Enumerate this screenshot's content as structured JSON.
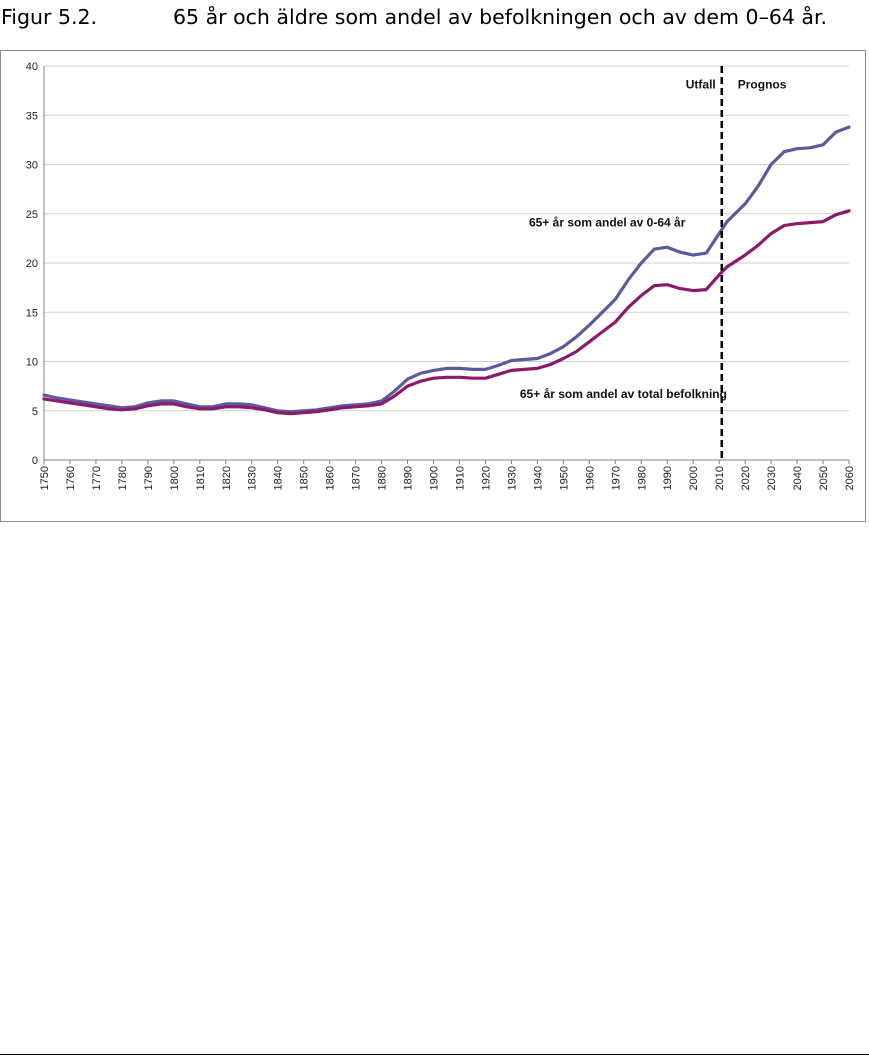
{
  "figure": {
    "number": "Figur 5.2.",
    "title": "65 år och äldre som andel av befolkningen och av dem 0–64 år."
  },
  "chart_data": {
    "type": "line",
    "ylim": [
      0,
      40
    ],
    "yticks": [
      0,
      5,
      10,
      15,
      20,
      25,
      30,
      35,
      40
    ],
    "xlim": [
      1750,
      2060
    ],
    "xticks": [
      "1750",
      "1760",
      "1770",
      "1780",
      "1790",
      "1800",
      "1810",
      "1820",
      "1830",
      "1840",
      "1850",
      "1860",
      "1870",
      "1880",
      "1890",
      "1900",
      "1910",
      "1920",
      "1930",
      "1940",
      "1950",
      "1960",
      "1970",
      "1980",
      "1990",
      "2000",
      "2010",
      "2020",
      "2030",
      "2040",
      "2050",
      "2060"
    ],
    "grid": "horizontal",
    "divider_year": 2011,
    "region_labels": {
      "left": "Utfall",
      "right": "Prognos"
    },
    "colors": {
      "series_0_64": "#5a5a9c",
      "series_total": "#8c1a6a",
      "divider": "#000000",
      "grid": "#d0d0d0"
    },
    "series": [
      {
        "name": "65+ år som andel av 0-64 år",
        "points": [
          [
            1750,
            6.6
          ],
          [
            1755,
            6.3
          ],
          [
            1760,
            6.1
          ],
          [
            1765,
            5.9
          ],
          [
            1770,
            5.7
          ],
          [
            1775,
            5.5
          ],
          [
            1780,
            5.3
          ],
          [
            1785,
            5.4
          ],
          [
            1790,
            5.8
          ],
          [
            1795,
            6.0
          ],
          [
            1800,
            6.0
          ],
          [
            1805,
            5.7
          ],
          [
            1810,
            5.4
          ],
          [
            1815,
            5.4
          ],
          [
            1820,
            5.7
          ],
          [
            1825,
            5.7
          ],
          [
            1830,
            5.6
          ],
          [
            1835,
            5.3
          ],
          [
            1840,
            5.0
          ],
          [
            1845,
            4.9
          ],
          [
            1850,
            5.0
          ],
          [
            1855,
            5.1
          ],
          [
            1860,
            5.3
          ],
          [
            1865,
            5.5
          ],
          [
            1870,
            5.6
          ],
          [
            1875,
            5.7
          ],
          [
            1880,
            6.0
          ],
          [
            1885,
            7.0
          ],
          [
            1890,
            8.2
          ],
          [
            1895,
            8.8
          ],
          [
            1900,
            9.1
          ],
          [
            1905,
            9.3
          ],
          [
            1910,
            9.3
          ],
          [
            1915,
            9.2
          ],
          [
            1920,
            9.2
          ],
          [
            1925,
            9.6
          ],
          [
            1930,
            10.1
          ],
          [
            1935,
            10.2
          ],
          [
            1940,
            10.3
          ],
          [
            1945,
            10.8
          ],
          [
            1950,
            11.5
          ],
          [
            1955,
            12.5
          ],
          [
            1960,
            13.7
          ],
          [
            1965,
            15.0
          ],
          [
            1970,
            16.3
          ],
          [
            1975,
            18.3
          ],
          [
            1980,
            20.0
          ],
          [
            1985,
            21.4
          ],
          [
            1990,
            21.6
          ],
          [
            1995,
            21.1
          ],
          [
            2000,
            20.8
          ],
          [
            2005,
            21.0
          ],
          [
            2010,
            23.0
          ],
          [
            2013,
            24.2
          ],
          [
            2020,
            26.0
          ],
          [
            2025,
            27.8
          ],
          [
            2030,
            30.0
          ],
          [
            2035,
            31.3
          ],
          [
            2040,
            31.6
          ],
          [
            2045,
            31.7
          ],
          [
            2050,
            32.0
          ],
          [
            2055,
            33.3
          ],
          [
            2060,
            33.8
          ]
        ]
      },
      {
        "name": "65+ år som andel av total befolkning",
        "points": [
          [
            1750,
            6.2
          ],
          [
            1755,
            6.0
          ],
          [
            1760,
            5.8
          ],
          [
            1765,
            5.6
          ],
          [
            1770,
            5.4
          ],
          [
            1775,
            5.2
          ],
          [
            1780,
            5.1
          ],
          [
            1785,
            5.2
          ],
          [
            1790,
            5.5
          ],
          [
            1795,
            5.7
          ],
          [
            1800,
            5.7
          ],
          [
            1805,
            5.4
          ],
          [
            1810,
            5.2
          ],
          [
            1815,
            5.2
          ],
          [
            1820,
            5.4
          ],
          [
            1825,
            5.4
          ],
          [
            1830,
            5.3
          ],
          [
            1835,
            5.1
          ],
          [
            1840,
            4.8
          ],
          [
            1845,
            4.7
          ],
          [
            1850,
            4.8
          ],
          [
            1855,
            4.9
          ],
          [
            1860,
            5.1
          ],
          [
            1865,
            5.3
          ],
          [
            1870,
            5.4
          ],
          [
            1875,
            5.5
          ],
          [
            1880,
            5.7
          ],
          [
            1885,
            6.5
          ],
          [
            1890,
            7.5
          ],
          [
            1895,
            8.0
          ],
          [
            1900,
            8.3
          ],
          [
            1905,
            8.4
          ],
          [
            1910,
            8.4
          ],
          [
            1915,
            8.3
          ],
          [
            1920,
            8.3
          ],
          [
            1925,
            8.7
          ],
          [
            1930,
            9.1
          ],
          [
            1935,
            9.2
          ],
          [
            1940,
            9.3
          ],
          [
            1945,
            9.7
          ],
          [
            1950,
            10.3
          ],
          [
            1955,
            11.0
          ],
          [
            1960,
            12.0
          ],
          [
            1965,
            13.0
          ],
          [
            1970,
            14.0
          ],
          [
            1975,
            15.5
          ],
          [
            1980,
            16.7
          ],
          [
            1985,
            17.7
          ],
          [
            1990,
            17.8
          ],
          [
            1995,
            17.4
          ],
          [
            2000,
            17.2
          ],
          [
            2005,
            17.3
          ],
          [
            2010,
            18.8
          ],
          [
            2013,
            19.6
          ],
          [
            2020,
            20.8
          ],
          [
            2025,
            21.8
          ],
          [
            2030,
            23.0
          ],
          [
            2035,
            23.8
          ],
          [
            2040,
            24.0
          ],
          [
            2045,
            24.1
          ],
          [
            2050,
            24.2
          ],
          [
            2055,
            24.9
          ],
          [
            2060,
            25.3
          ]
        ]
      }
    ],
    "annotations": [
      {
        "text": "65+ år som andel av 0-64 år",
        "x": 1997,
        "y": 23.7
      },
      {
        "text": "65+ år som andel av total befolkning",
        "x": 2013,
        "y": 6.3
      }
    ]
  }
}
